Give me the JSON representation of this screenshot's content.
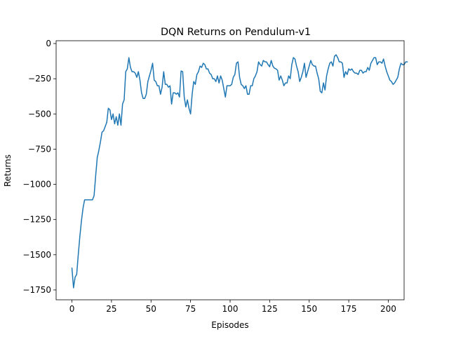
{
  "chart_data": {
    "type": "line",
    "title": "DQN Returns on Pendulum-v1",
    "xlabel": "Episodes",
    "ylabel": "Returns",
    "xlim": [
      -10,
      210
    ],
    "ylim": [
      -1820,
      20
    ],
    "x_ticks": [
      0,
      25,
      50,
      75,
      100,
      125,
      150,
      175,
      200
    ],
    "y_ticks": [
      0,
      -250,
      -500,
      -750,
      -1000,
      -1250,
      -1500,
      -1750
    ],
    "grid": false,
    "line_color": "#1f77b4",
    "series": [
      {
        "values": [
          -1595,
          -1735,
          -1660,
          -1640,
          -1500,
          -1370,
          -1260,
          -1170,
          -1110,
          -1110,
          -1110,
          -1110,
          -1110,
          -1110,
          -1080,
          -940,
          -810,
          -760,
          -700,
          -630,
          -620,
          -590,
          -560,
          -460,
          -470,
          -540,
          -500,
          -570,
          -520,
          -580,
          -500,
          -580,
          -430,
          -400,
          -200,
          -180,
          -100,
          -170,
          -200,
          -200,
          -210,
          -240,
          -200,
          -260,
          -350,
          -390,
          -390,
          -360,
          -270,
          -230,
          -190,
          -140,
          -260,
          -270,
          -300,
          -300,
          -360,
          -310,
          -200,
          -290,
          -290,
          -310,
          -300,
          -430,
          -350,
          -350,
          -360,
          -350,
          -380,
          -195,
          -200,
          -380,
          -450,
          -400,
          -460,
          -500,
          -360,
          -270,
          -290,
          -220,
          -200,
          -160,
          -170,
          -140,
          -150,
          -180,
          -180,
          -210,
          -220,
          -250,
          -250,
          -270,
          -230,
          -280,
          -230,
          -260,
          -320,
          -380,
          -300,
          -300,
          -300,
          -290,
          -240,
          -220,
          -140,
          -130,
          -240,
          -290,
          -300,
          -320,
          -300,
          -360,
          -360,
          -300,
          -300,
          -250,
          -230,
          -200,
          -130,
          -150,
          -160,
          -120,
          -130,
          -130,
          -150,
          -165,
          -120,
          -160,
          -175,
          -180,
          -190,
          -260,
          -230,
          -260,
          -300,
          -280,
          -280,
          -230,
          -250,
          -150,
          -100,
          -110,
          -160,
          -200,
          -270,
          -240,
          -200,
          -140,
          -240,
          -200,
          -160,
          -120,
          -150,
          -160,
          -160,
          -210,
          -250,
          -340,
          -350,
          -280,
          -330,
          -230,
          -180,
          -140,
          -130,
          -160,
          -90,
          -80,
          -100,
          -130,
          -130,
          -140,
          -240,
          -200,
          -220,
          -180,
          -190,
          -180,
          -200,
          -210,
          -210,
          -220,
          -190,
          -190,
          -210,
          -200,
          -200,
          -170,
          -190,
          -140,
          -120,
          -100,
          -100,
          -150,
          -130,
          -130,
          -140,
          -110,
          -160,
          -200,
          -230,
          -260,
          -270,
          -290,
          -280,
          -260,
          -240,
          -180,
          -140,
          -150,
          -150,
          -130,
          -130
        ]
      }
    ]
  }
}
